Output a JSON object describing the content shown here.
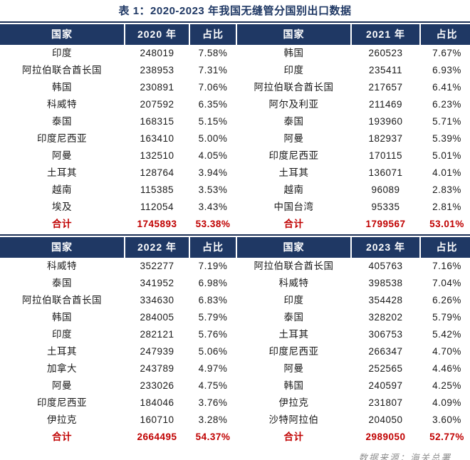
{
  "title": "表 1：2020-2023 年我国无缝管分国别出口数据",
  "source_note": "数据来源：海关总署",
  "total_label": "合计",
  "colors": {
    "header_bg": "#1F3864",
    "title_text": "#1F3864",
    "total_text": "#C00000",
    "body_text": "#1a1a1a",
    "source_text": "#8f8f8f"
  },
  "chart_data": {
    "type": "table",
    "title": "表 1：2020-2023 年我国无缝管分国别出口数据",
    "source": "数据来源：海关总署",
    "tables": [
      {
        "year": "2020",
        "columns": [
          "国家",
          "2020 年",
          "占比"
        ],
        "rows": [
          [
            "印度",
            "248019",
            "7.58%"
          ],
          [
            "阿拉伯联合酋长国",
            "238953",
            "7.31%"
          ],
          [
            "韩国",
            "230891",
            "7.06%"
          ],
          [
            "科威特",
            "207592",
            "6.35%"
          ],
          [
            "泰国",
            "168315",
            "5.15%"
          ],
          [
            "印度尼西亚",
            "163410",
            "5.00%"
          ],
          [
            "阿曼",
            "132510",
            "4.05%"
          ],
          [
            "土耳其",
            "128764",
            "3.94%"
          ],
          [
            "越南",
            "115385",
            "3.53%"
          ],
          [
            "埃及",
            "112054",
            "3.43%"
          ]
        ],
        "total": [
          "合计",
          "1745893",
          "53.38%"
        ]
      },
      {
        "year": "2021",
        "columns": [
          "国家",
          "2021 年",
          "占比"
        ],
        "rows": [
          [
            "韩国",
            "260523",
            "7.67%"
          ],
          [
            "印度",
            "235411",
            "6.93%"
          ],
          [
            "阿拉伯联合酋长国",
            "217657",
            "6.41%"
          ],
          [
            "阿尔及利亚",
            "211469",
            "6.23%"
          ],
          [
            "泰国",
            "193960",
            "5.71%"
          ],
          [
            "阿曼",
            "182937",
            "5.39%"
          ],
          [
            "印度尼西亚",
            "170115",
            "5.01%"
          ],
          [
            "土耳其",
            "136071",
            "4.01%"
          ],
          [
            "越南",
            "96089",
            "2.83%"
          ],
          [
            "中国台湾",
            "95335",
            "2.81%"
          ]
        ],
        "total": [
          "合计",
          "1799567",
          "53.01%"
        ]
      },
      {
        "year": "2022",
        "columns": [
          "国家",
          "2022 年",
          "占比"
        ],
        "rows": [
          [
            "科威特",
            "352277",
            "7.19%"
          ],
          [
            "泰国",
            "341952",
            "6.98%"
          ],
          [
            "阿拉伯联合酋长国",
            "334630",
            "6.83%"
          ],
          [
            "韩国",
            "284005",
            "5.79%"
          ],
          [
            "印度",
            "282121",
            "5.76%"
          ],
          [
            "土耳其",
            "247939",
            "5.06%"
          ],
          [
            "加拿大",
            "243789",
            "4.97%"
          ],
          [
            "阿曼",
            "233026",
            "4.75%"
          ],
          [
            "印度尼西亚",
            "184046",
            "3.76%"
          ],
          [
            "伊拉克",
            "160710",
            "3.28%"
          ]
        ],
        "total": [
          "合计",
          "2664495",
          "54.37%"
        ]
      },
      {
        "year": "2023",
        "columns": [
          "国家",
          "2023 年",
          "占比"
        ],
        "rows": [
          [
            "阿拉伯联合酋长国",
            "405763",
            "7.16%"
          ],
          [
            "科威特",
            "398538",
            "7.04%"
          ],
          [
            "印度",
            "354428",
            "6.26%"
          ],
          [
            "泰国",
            "328202",
            "5.79%"
          ],
          [
            "土耳其",
            "306753",
            "5.42%"
          ],
          [
            "印度尼西亚",
            "266347",
            "4.70%"
          ],
          [
            "阿曼",
            "252565",
            "4.46%"
          ],
          [
            "韩国",
            "240597",
            "4.25%"
          ],
          [
            "伊拉克",
            "231807",
            "4.09%"
          ],
          [
            "沙特阿拉伯",
            "204050",
            "3.60%"
          ]
        ],
        "total": [
          "合计",
          "2989050",
          "52.77%"
        ]
      }
    ]
  }
}
